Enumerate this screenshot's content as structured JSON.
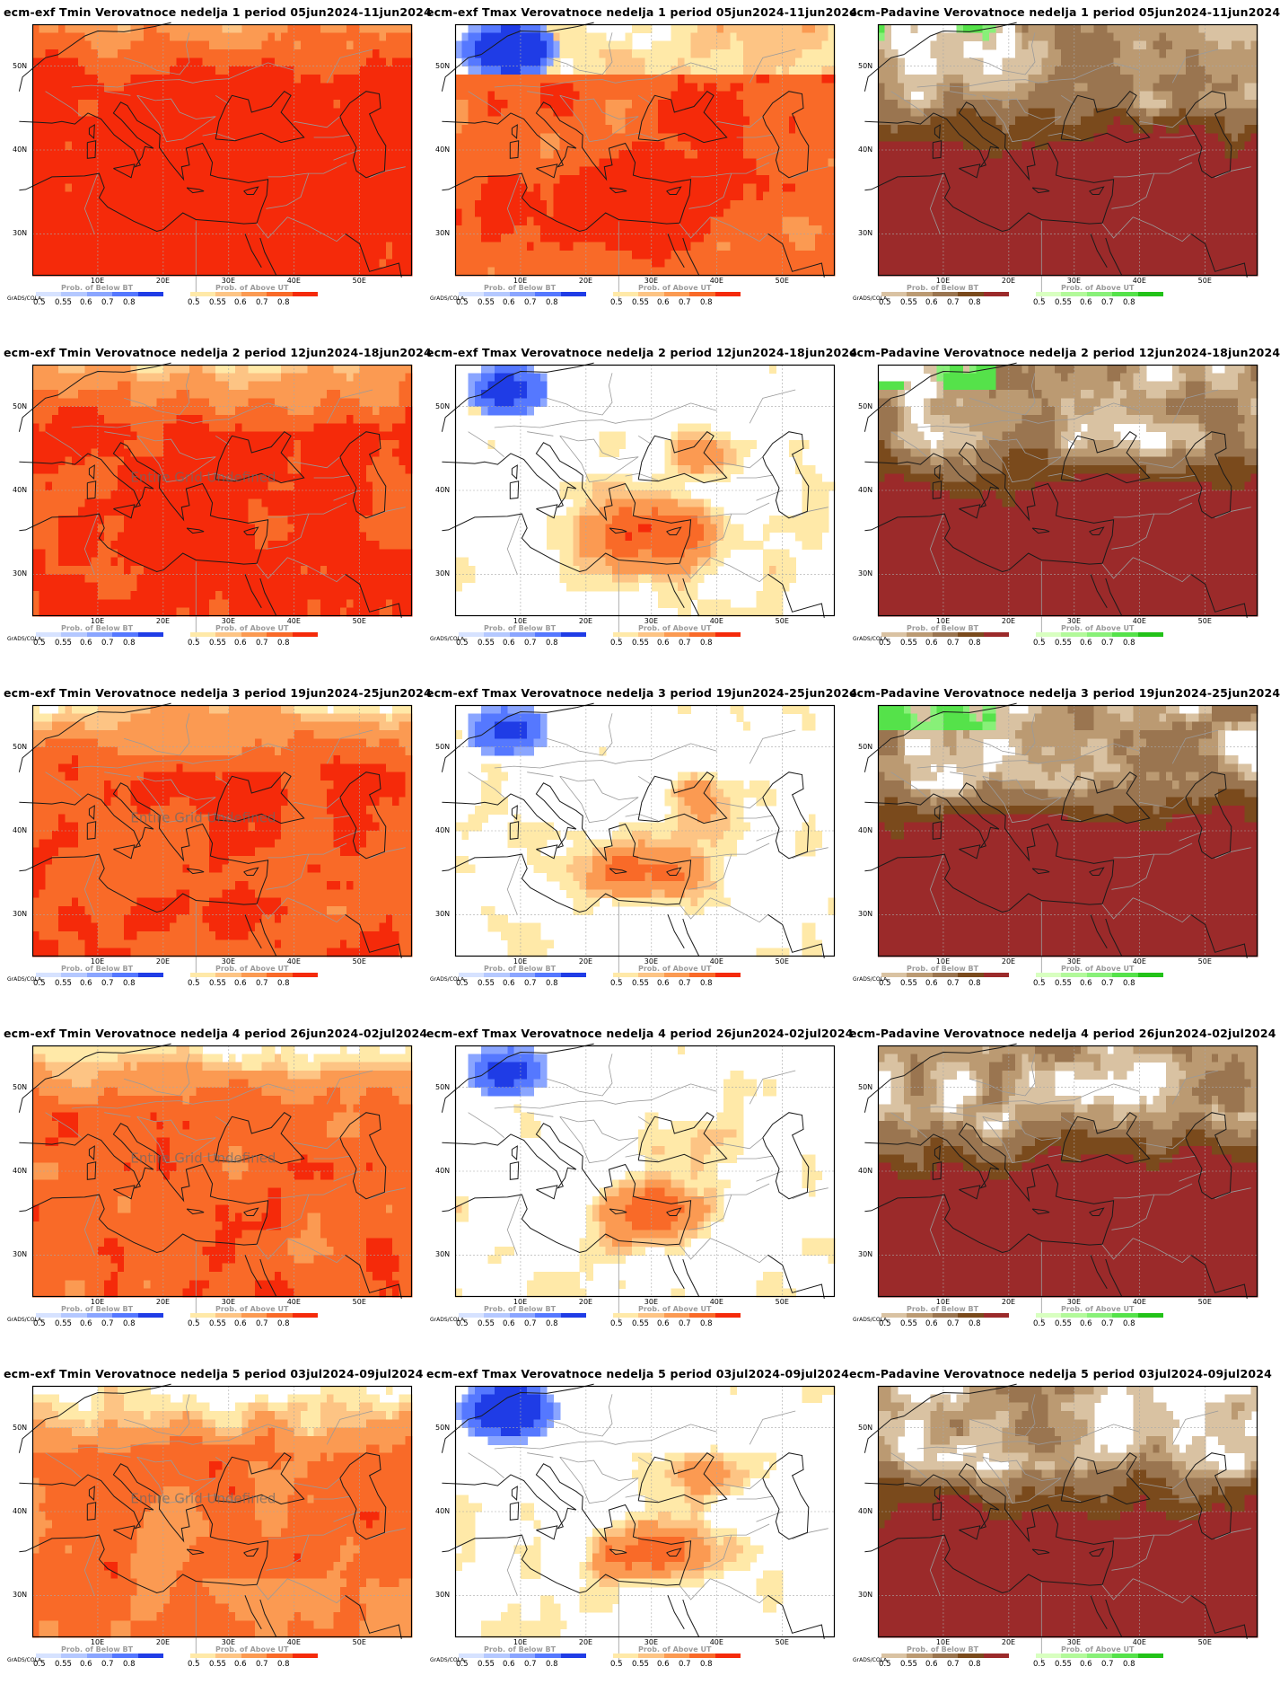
{
  "footer": "GrADS/COLA",
  "y_ticks": [
    "50N",
    "40N",
    "30N"
  ],
  "x_ticks": [
    "10E",
    "20E",
    "30E",
    "40E",
    "50E"
  ],
  "legend": {
    "below": "Prob. of Below BT",
    "above": "Prob. of Above UT",
    "labels": [
      "0.5",
      "0.55",
      "0.6",
      "0.7",
      "0.8"
    ]
  },
  "colors": {
    "below_temp": [
      "#d6e2ff",
      "#b4c8ff",
      "#8aa5ff",
      "#5578ff",
      "#1f3ce6"
    ],
    "above_temp": [
      "#ffe9a8",
      "#fdc484",
      "#fb9a52",
      "#f96a28",
      "#f52a0a"
    ],
    "below_precip": [
      "#d9c2a2",
      "#bb9a72",
      "#9a7550",
      "#7a4a1c",
      "#9b2a2a"
    ],
    "above_precip": [
      "#d8ffc0",
      "#b2f99a",
      "#88f078",
      "#55e24a",
      "#22c218"
    ]
  },
  "panels": [
    {
      "title": "ecm-exf Tmin Verovatnoce nedelja 1 period 05jun2024-11jun2024",
      "type": "tmin",
      "stamp": ""
    },
    {
      "title": "ecm-exf Tmax Verovatnoce nedelja 1 period 05jun2024-11jun2024",
      "type": "tmax",
      "stamp": ""
    },
    {
      "title": "ecm-Padavine Verovatnoce nedelja 1 period 05jun2024-11jun2024",
      "type": "precip",
      "stamp": ""
    },
    {
      "title": "ecm-exf Tmin Verovatnoce nedelja 2 period 12jun2024-18jun2024",
      "type": "tmin",
      "stamp": "Entire Grid Undefined"
    },
    {
      "title": "ecm-exf Tmax Verovatnoce nedelja 2 period 12jun2024-18jun2024",
      "type": "tmax",
      "stamp": ""
    },
    {
      "title": "ecm-Padavine Verovatnoce nedelja 2 period 12jun2024-18jun2024",
      "type": "precip",
      "stamp": ""
    },
    {
      "title": "ecm-exf Tmin Verovatnoce nedelja 3 period 19jun2024-25jun2024",
      "type": "tmin",
      "stamp": "Entire Grid Undefined"
    },
    {
      "title": "ecm-exf Tmax Verovatnoce nedelja 3 period 19jun2024-25jun2024",
      "type": "tmax",
      "stamp": ""
    },
    {
      "title": "ecm-Padavine Verovatnoce nedelja 3 period 19jun2024-25jun2024",
      "type": "precip",
      "stamp": ""
    },
    {
      "title": "ecm-exf Tmin Verovatnoce nedelja 4 period 26jun2024-02jul2024",
      "type": "tmin",
      "stamp": "Entire Grid Undefined"
    },
    {
      "title": "ecm-exf Tmax Verovatnoce nedelja 4 period 26jun2024-02jul2024",
      "type": "tmax",
      "stamp": ""
    },
    {
      "title": "ecm-Padavine Verovatnoce nedelja 4 period 26jun2024-02jul2024",
      "type": "precip",
      "stamp": ""
    },
    {
      "title": "ecm-exf Tmin Verovatnoce nedelja 5 period 03jul2024-09jul2024",
      "type": "tmin",
      "stamp": "Entire Grid Undefined"
    },
    {
      "title": "ecm-exf Tmax Verovatnoce nedelja 5 period 03jul2024-09jul2024",
      "type": "tmax",
      "stamp": ""
    },
    {
      "title": "ecm-Padavine Verovatnoce nedelja 5 period 03jul2024-09jul2024",
      "type": "precip",
      "stamp": ""
    }
  ]
}
